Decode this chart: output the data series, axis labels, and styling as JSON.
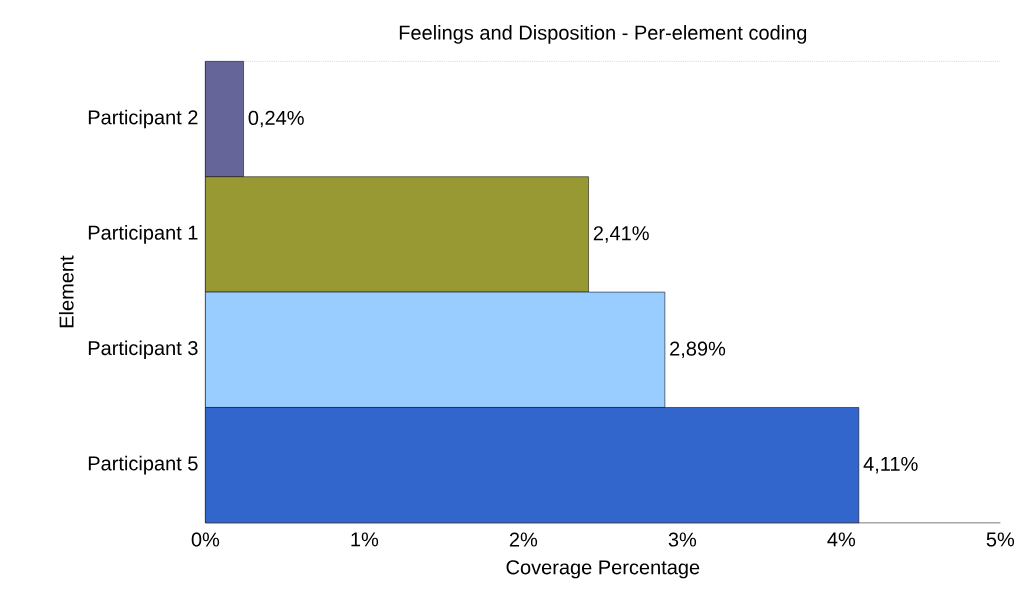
{
  "chart_data": {
    "type": "bar",
    "orientation": "horizontal",
    "title": "Feelings and Disposition - Per-element coding",
    "xlabel": "Coverage Percentage",
    "ylabel": "Element",
    "categories": [
      "Participant 2",
      "Participant 1",
      "Participant 3",
      "Participant 5"
    ],
    "values": [
      0.24,
      2.41,
      2.89,
      4.11
    ],
    "colors": [
      "#65659a",
      "#999933",
      "#99ccff",
      "#3366cc"
    ],
    "value_labels": [
      "0,24%",
      "2,41%",
      "2,89%",
      "4,11%"
    ],
    "xlim": [
      0,
      5
    ],
    "xticks": [
      {
        "value": 0,
        "label": "0%"
      },
      {
        "value": 1,
        "label": "1%"
      },
      {
        "value": 2,
        "label": "2%"
      },
      {
        "value": 3,
        "label": "3%"
      },
      {
        "value": 4,
        "label": "4%"
      },
      {
        "value": 5,
        "label": "5%"
      }
    ],
    "grid": false
  }
}
